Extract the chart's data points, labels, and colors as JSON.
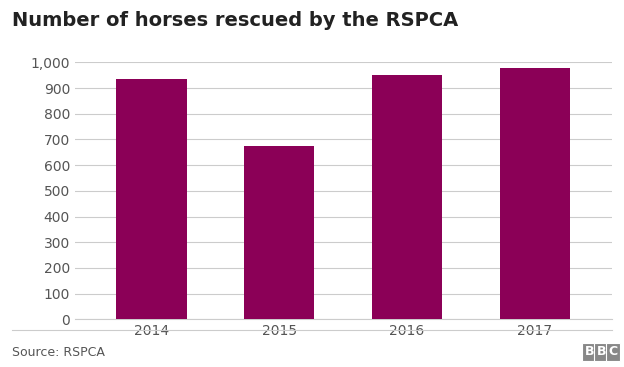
{
  "title": "Number of horses rescued by the RSPCA",
  "categories": [
    "2014",
    "2015",
    "2016",
    "2017"
  ],
  "values": [
    935,
    675,
    950,
    980
  ],
  "bar_color": "#8b0057",
  "ylim": [
    0,
    1000
  ],
  "yticks": [
    0,
    100,
    200,
    300,
    400,
    500,
    600,
    700,
    800,
    900,
    1000
  ],
  "ytick_labels": [
    "0",
    "100",
    "200",
    "300",
    "400",
    "500",
    "600",
    "700",
    "800",
    "900",
    "1,000"
  ],
  "source_text": "Source: RSPCA",
  "bbc_text": "BBC",
  "background_color": "#ffffff",
  "grid_color": "#cccccc",
  "title_fontsize": 14,
  "tick_fontsize": 10,
  "source_fontsize": 9
}
